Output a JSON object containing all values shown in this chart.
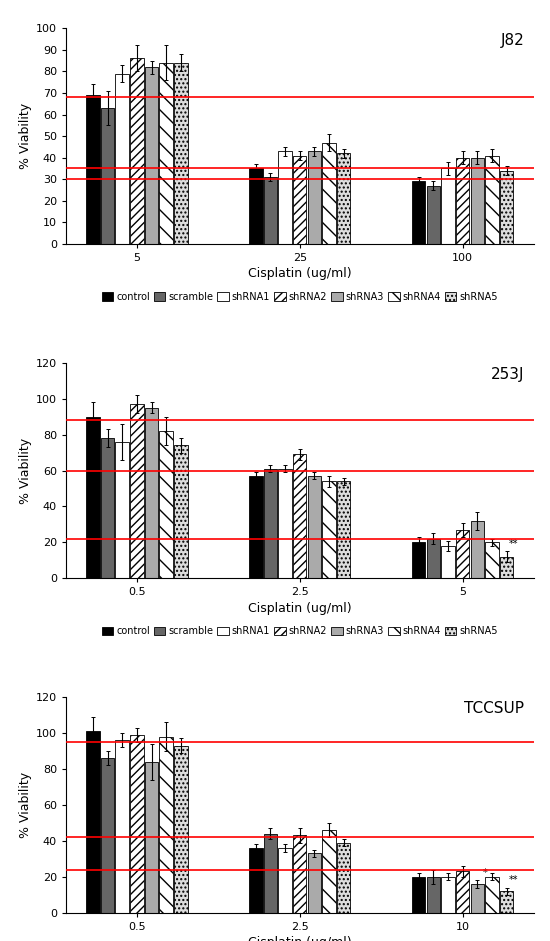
{
  "panels": [
    {
      "title": "J82",
      "xlabel": "Cisplatin (ug/ml)",
      "ylabel": "% Viability",
      "ylim": [
        0,
        100
      ],
      "yticks": [
        0,
        10,
        20,
        30,
        40,
        50,
        60,
        70,
        80,
        90,
        100
      ],
      "groups": [
        "5",
        "25",
        "100"
      ],
      "red_lines": [
        68,
        35,
        30
      ],
      "values": [
        [
          69,
          63,
          79,
          86,
          82,
          84,
          84
        ],
        [
          35,
          31,
          43,
          41,
          43,
          47,
          42
        ],
        [
          29,
          27,
          35,
          40,
          40,
          41,
          34
        ]
      ],
      "errors": [
        [
          5,
          8,
          4,
          6,
          3,
          8,
          4
        ],
        [
          2,
          2,
          2,
          2,
          2,
          4,
          2
        ],
        [
          2,
          2,
          3,
          3,
          3,
          3,
          2
        ]
      ],
      "annotations": [
        null,
        null,
        null
      ]
    },
    {
      "title": "253J",
      "xlabel": "Cisplatin (ug/ml)",
      "ylabel": "% Viability",
      "ylim": [
        0,
        120
      ],
      "yticks": [
        0,
        20,
        40,
        60,
        80,
        100,
        120
      ],
      "groups": [
        "0.5",
        "2.5",
        "5"
      ],
      "red_lines": [
        88,
        60,
        22
      ],
      "values": [
        [
          90,
          78,
          76,
          97,
          95,
          82,
          74
        ],
        [
          57,
          61,
          61,
          69,
          57,
          54,
          54
        ],
        [
          20,
          22,
          18,
          27,
          32,
          20,
          12
        ]
      ],
      "errors": [
        [
          8,
          5,
          10,
          5,
          3,
          8,
          4
        ],
        [
          2,
          2,
          2,
          3,
          2,
          3,
          2
        ],
        [
          3,
          3,
          3,
          4,
          5,
          2,
          3
        ]
      ],
      "annotations": [
        null,
        null,
        "**"
      ]
    },
    {
      "title": "TCCSUP",
      "xlabel": "Cisplatin (ug/ml)",
      "ylabel": "% Viability",
      "ylim": [
        0,
        120
      ],
      "yticks": [
        0,
        20,
        40,
        60,
        80,
        100,
        120
      ],
      "groups": [
        "0.5",
        "2.5",
        "10"
      ],
      "red_lines": [
        95,
        42,
        24
      ],
      "values": [
        [
          101,
          86,
          96,
          99,
          84,
          98,
          93
        ],
        [
          36,
          44,
          36,
          43,
          33,
          46,
          39
        ],
        [
          20,
          20,
          20,
          23,
          16,
          20,
          12
        ]
      ],
      "errors": [
        [
          8,
          4,
          4,
          4,
          10,
          8,
          4
        ],
        [
          2,
          3,
          2,
          4,
          2,
          4,
          2
        ],
        [
          2,
          4,
          2,
          3,
          2,
          2,
          2
        ]
      ],
      "annotations": [
        null,
        null,
        "*/**"
      ]
    }
  ],
  "bar_colors": [
    "#000000",
    "#666666",
    "#ffffff",
    "#ffffff",
    "#aaaaaa",
    "#ffffff",
    "#dddddd"
  ],
  "bar_hatches": [
    null,
    null,
    null,
    "////",
    null,
    "\\\\",
    "...."
  ],
  "bar_edgecolors": [
    "#000000",
    "#000000",
    "#000000",
    "#000000",
    "#000000",
    "#000000",
    "#000000"
  ],
  "legend_labels": [
    "control",
    "scramble",
    "shRNA1",
    "shRNA2",
    "shRNA3",
    "shRNA4",
    "shRNA5"
  ],
  "red_line_color": "#ff0000"
}
